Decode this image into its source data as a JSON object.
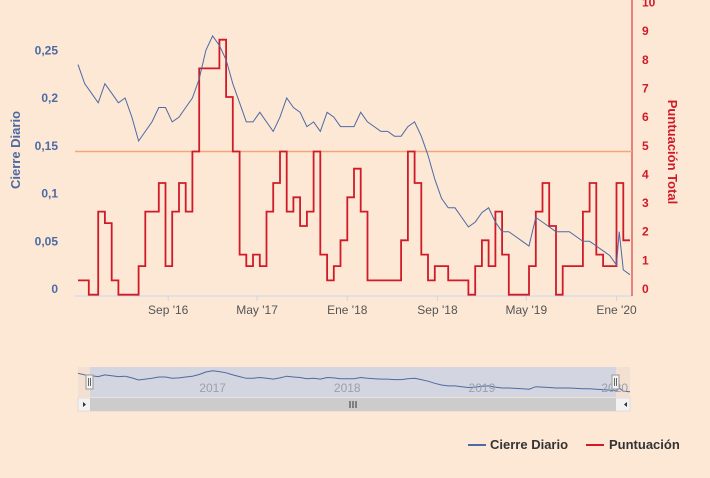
{
  "chart_data": {
    "type": "line",
    "background": "#fde8d5",
    "x_ticks": [
      "Sep '16",
      "May '17",
      "Ene '18",
      "Sep '18",
      "May '19",
      "Ene '20"
    ],
    "y_left": {
      "title": "Cierre Diario",
      "range": [
        0,
        0.3
      ],
      "ticks": [
        "0",
        "0,05",
        "0,1",
        "0,15",
        "0,2",
        "0,25"
      ],
      "color": "#4c6aa3"
    },
    "y_right": {
      "title": "Puntuación Total",
      "range": [
        0,
        10
      ],
      "ticks": [
        "0",
        "1",
        "2",
        "3",
        "4",
        "5",
        "6",
        "7",
        "8",
        "9",
        "10"
      ],
      "color": "#d01a28"
    },
    "reference_line": {
      "axis": "right",
      "value": 4.8,
      "color": "#f0a878"
    },
    "series": [
      {
        "name": "Cierre Diario",
        "axis": "left",
        "color": "#4c6aa3",
        "points": [
          [
            2016.0,
            0.235
          ],
          [
            2016.05,
            0.215
          ],
          [
            2016.1,
            0.205
          ],
          [
            2016.15,
            0.195
          ],
          [
            2016.2,
            0.215
          ],
          [
            2016.25,
            0.205
          ],
          [
            2016.3,
            0.195
          ],
          [
            2016.35,
            0.2
          ],
          [
            2016.4,
            0.18
          ],
          [
            2016.45,
            0.155
          ],
          [
            2016.5,
            0.165
          ],
          [
            2016.55,
            0.175
          ],
          [
            2016.6,
            0.19
          ],
          [
            2016.65,
            0.19
          ],
          [
            2016.7,
            0.175
          ],
          [
            2016.75,
            0.18
          ],
          [
            2016.8,
            0.19
          ],
          [
            2016.85,
            0.2
          ],
          [
            2016.9,
            0.22
          ],
          [
            2016.95,
            0.25
          ],
          [
            2017.0,
            0.265
          ],
          [
            2017.05,
            0.255
          ],
          [
            2017.1,
            0.24
          ],
          [
            2017.15,
            0.215
          ],
          [
            2017.2,
            0.195
          ],
          [
            2017.25,
            0.175
          ],
          [
            2017.3,
            0.175
          ],
          [
            2017.35,
            0.185
          ],
          [
            2017.4,
            0.175
          ],
          [
            2017.45,
            0.165
          ],
          [
            2017.5,
            0.18
          ],
          [
            2017.55,
            0.2
          ],
          [
            2017.6,
            0.19
          ],
          [
            2017.65,
            0.185
          ],
          [
            2017.7,
            0.17
          ],
          [
            2017.75,
            0.175
          ],
          [
            2017.8,
            0.165
          ],
          [
            2017.85,
            0.185
          ],
          [
            2017.9,
            0.18
          ],
          [
            2017.95,
            0.17
          ],
          [
            2018.0,
            0.17
          ],
          [
            2018.05,
            0.17
          ],
          [
            2018.1,
            0.185
          ],
          [
            2018.15,
            0.175
          ],
          [
            2018.2,
            0.17
          ],
          [
            2018.25,
            0.165
          ],
          [
            2018.3,
            0.165
          ],
          [
            2018.35,
            0.16
          ],
          [
            2018.4,
            0.16
          ],
          [
            2018.45,
            0.17
          ],
          [
            2018.5,
            0.175
          ],
          [
            2018.55,
            0.16
          ],
          [
            2018.6,
            0.14
          ],
          [
            2018.65,
            0.115
          ],
          [
            2018.7,
            0.095
          ],
          [
            2018.75,
            0.085
          ],
          [
            2018.8,
            0.085
          ],
          [
            2018.85,
            0.075
          ],
          [
            2018.9,
            0.065
          ],
          [
            2018.95,
            0.07
          ],
          [
            2019.0,
            0.08
          ],
          [
            2019.05,
            0.085
          ],
          [
            2019.1,
            0.07
          ],
          [
            2019.15,
            0.06
          ],
          [
            2019.2,
            0.06
          ],
          [
            2019.25,
            0.055
          ],
          [
            2019.3,
            0.05
          ],
          [
            2019.35,
            0.045
          ],
          [
            2019.4,
            0.075
          ],
          [
            2019.45,
            0.07
          ],
          [
            2019.5,
            0.065
          ],
          [
            2019.55,
            0.06
          ],
          [
            2019.6,
            0.06
          ],
          [
            2019.65,
            0.06
          ],
          [
            2019.7,
            0.055
          ],
          [
            2019.75,
            0.05
          ],
          [
            2019.8,
            0.05
          ],
          [
            2019.85,
            0.045
          ],
          [
            2019.9,
            0.04
          ],
          [
            2019.95,
            0.035
          ],
          [
            2020.0,
            0.025
          ],
          [
            2020.02,
            0.06
          ],
          [
            2020.05,
            0.02
          ],
          [
            2020.1,
            0.015
          ]
        ]
      },
      {
        "name": "Puntuación",
        "axis": "right",
        "color": "#d01a28",
        "points": [
          [
            2016.0,
            0.3
          ],
          [
            2016.05,
            0.3
          ],
          [
            2016.08,
            -0.2
          ],
          [
            2016.12,
            -0.2
          ],
          [
            2016.15,
            2.7
          ],
          [
            2016.2,
            2.3
          ],
          [
            2016.25,
            0.3
          ],
          [
            2016.3,
            -0.2
          ],
          [
            2016.4,
            -0.2
          ],
          [
            2016.45,
            0.8
          ],
          [
            2016.5,
            2.7
          ],
          [
            2016.55,
            2.7
          ],
          [
            2016.6,
            3.7
          ],
          [
            2016.65,
            0.8
          ],
          [
            2016.7,
            2.7
          ],
          [
            2016.75,
            3.7
          ],
          [
            2016.8,
            2.7
          ],
          [
            2016.85,
            4.8
          ],
          [
            2016.9,
            7.7
          ],
          [
            2016.95,
            7.7
          ],
          [
            2017.0,
            7.7
          ],
          [
            2017.05,
            8.7
          ],
          [
            2017.1,
            6.7
          ],
          [
            2017.15,
            4.8
          ],
          [
            2017.2,
            1.2
          ],
          [
            2017.25,
            0.8
          ],
          [
            2017.3,
            1.2
          ],
          [
            2017.35,
            0.8
          ],
          [
            2017.4,
            2.7
          ],
          [
            2017.45,
            3.7
          ],
          [
            2017.5,
            4.8
          ],
          [
            2017.55,
            2.7
          ],
          [
            2017.6,
            3.2
          ],
          [
            2017.65,
            2.2
          ],
          [
            2017.7,
            2.7
          ],
          [
            2017.75,
            4.8
          ],
          [
            2017.8,
            1.2
          ],
          [
            2017.85,
            0.3
          ],
          [
            2017.9,
            0.8
          ],
          [
            2017.95,
            1.7
          ],
          [
            2018.0,
            3.2
          ],
          [
            2018.05,
            4.2
          ],
          [
            2018.1,
            2.7
          ],
          [
            2018.15,
            0.3
          ],
          [
            2018.2,
            0.3
          ],
          [
            2018.25,
            0.3
          ],
          [
            2018.3,
            0.3
          ],
          [
            2018.35,
            0.3
          ],
          [
            2018.4,
            1.7
          ],
          [
            2018.45,
            4.8
          ],
          [
            2018.5,
            3.7
          ],
          [
            2018.55,
            1.2
          ],
          [
            2018.6,
            0.3
          ],
          [
            2018.65,
            0.8
          ],
          [
            2018.7,
            0.8
          ],
          [
            2018.75,
            0.3
          ],
          [
            2018.8,
            0.3
          ],
          [
            2018.85,
            0.3
          ],
          [
            2018.9,
            -0.2
          ],
          [
            2018.95,
            0.8
          ],
          [
            2019.0,
            1.7
          ],
          [
            2019.05,
            0.8
          ],
          [
            2019.1,
            2.7
          ],
          [
            2019.15,
            1.2
          ],
          [
            2019.2,
            -0.2
          ],
          [
            2019.25,
            -0.2
          ],
          [
            2019.3,
            -0.2
          ],
          [
            2019.35,
            0.8
          ],
          [
            2019.4,
            2.7
          ],
          [
            2019.45,
            3.7
          ],
          [
            2019.5,
            2.2
          ],
          [
            2019.55,
            -0.2
          ],
          [
            2019.6,
            0.8
          ],
          [
            2019.65,
            0.8
          ],
          [
            2019.7,
            0.8
          ],
          [
            2019.75,
            2.7
          ],
          [
            2019.8,
            3.7
          ],
          [
            2019.85,
            1.2
          ],
          [
            2019.9,
            0.8
          ],
          [
            2019.95,
            0.8
          ],
          [
            2020.0,
            3.7
          ],
          [
            2020.05,
            1.7
          ],
          [
            2020.1,
            1.7
          ]
        ]
      }
    ],
    "navigator": {
      "labels": [
        "2017",
        "2018",
        "2019",
        "2020"
      ]
    },
    "legend": [
      "Cierre Diario",
      "Puntuación"
    ]
  },
  "navigator_scroll_icon": "grip-icon"
}
